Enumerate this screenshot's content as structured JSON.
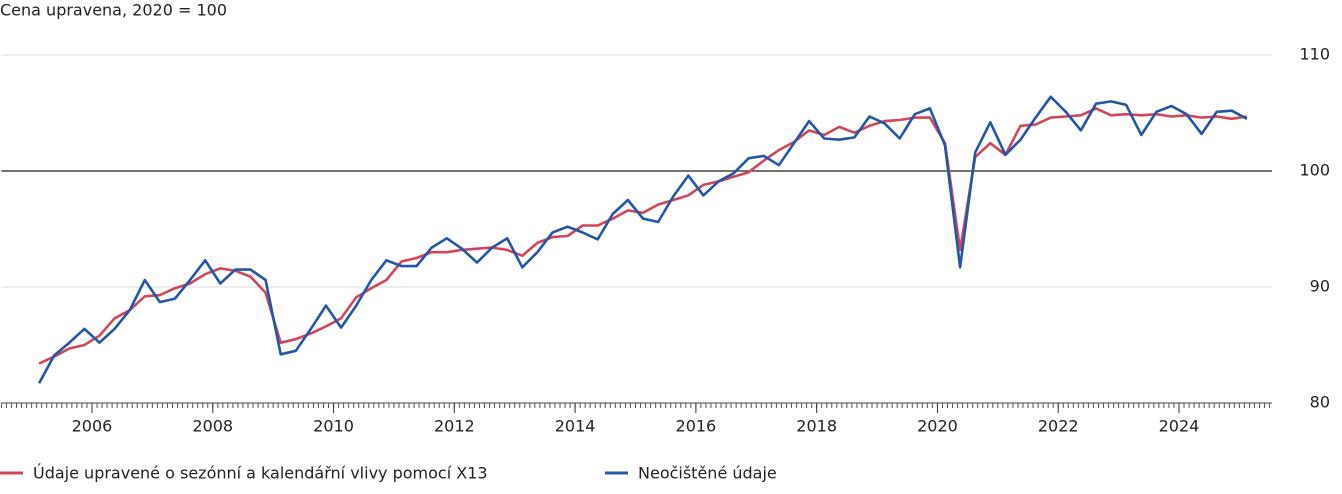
{
  "chart_data": {
    "type": "line",
    "title": "Cena upravena, 2020 = 100",
    "x": [
      2005.125,
      2005.375,
      2005.625,
      2005.875,
      2006.125,
      2006.375,
      2006.625,
      2006.875,
      2007.125,
      2007.375,
      2007.625,
      2007.875,
      2008.125,
      2008.375,
      2008.625,
      2008.875,
      2009.125,
      2009.375,
      2009.625,
      2009.875,
      2010.125,
      2010.375,
      2010.625,
      2010.875,
      2011.125,
      2011.375,
      2011.625,
      2011.875,
      2012.125,
      2012.375,
      2012.625,
      2012.875,
      2013.125,
      2013.375,
      2013.625,
      2013.875,
      2014.125,
      2014.375,
      2014.625,
      2014.875,
      2015.125,
      2015.375,
      2015.625,
      2015.875,
      2016.125,
      2016.375,
      2016.625,
      2016.875,
      2017.125,
      2017.375,
      2017.625,
      2017.875,
      2018.125,
      2018.375,
      2018.625,
      2018.875,
      2019.125,
      2019.375,
      2019.625,
      2019.875,
      2020.125,
      2020.375,
      2020.625,
      2020.875,
      2021.125,
      2021.375,
      2021.625,
      2021.875,
      2022.125,
      2022.375,
      2022.625,
      2022.875,
      2023.125,
      2023.375,
      2023.625,
      2023.875,
      2024.125,
      2024.375,
      2024.625,
      2024.875,
      2025.125
    ],
    "series": [
      {
        "name": "Údaje upravené o sezónní a kalendářní vlivy pomocí X13",
        "color": "#d1475a",
        "values": [
          83.4,
          84.0,
          84.7,
          85.0,
          85.8,
          87.3,
          88.0,
          89.2,
          89.3,
          89.9,
          90.3,
          91.1,
          91.6,
          91.4,
          90.9,
          89.5,
          85.2,
          85.5,
          86.0,
          86.6,
          87.3,
          89.1,
          89.9,
          90.6,
          92.2,
          92.5,
          93.0,
          93.0,
          93.2,
          93.3,
          93.4,
          93.2,
          92.7,
          93.8,
          94.3,
          94.4,
          95.3,
          95.3,
          95.9,
          96.6,
          96.4,
          97.1,
          97.5,
          97.9,
          98.8,
          99.1,
          99.5,
          99.9,
          100.9,
          101.8,
          102.5,
          103.5,
          103.1,
          103.8,
          103.3,
          103.9,
          104.3,
          104.4,
          104.6,
          104.6,
          102.4,
          93.2,
          101.2,
          102.4,
          101.4,
          103.9,
          104.0,
          104.6,
          104.7,
          104.8,
          105.4,
          104.8,
          104.9,
          104.8,
          104.9,
          104.7,
          104.8,
          104.6,
          104.7,
          104.5,
          104.7
        ]
      },
      {
        "name": "Neočištěné údaje",
        "color": "#2456a8",
        "values": [
          81.7,
          84.1,
          85.2,
          86.4,
          85.2,
          86.4,
          88.0,
          90.6,
          88.7,
          89.0,
          90.6,
          92.3,
          90.3,
          91.5,
          91.5,
          90.6,
          84.2,
          84.5,
          86.4,
          88.4,
          86.5,
          88.4,
          90.6,
          92.3,
          91.8,
          91.8,
          93.4,
          94.2,
          93.3,
          92.1,
          93.4,
          94.2,
          91.7,
          93.0,
          94.7,
          95.2,
          94.7,
          94.1,
          96.3,
          97.5,
          95.9,
          95.6,
          97.8,
          99.6,
          97.9,
          99.1,
          99.8,
          101.1,
          101.3,
          100.5,
          102.4,
          104.3,
          102.8,
          102.7,
          102.9,
          104.7,
          104.1,
          102.8,
          104.9,
          105.4,
          102.2,
          91.7,
          101.6,
          104.2,
          101.4,
          102.7,
          104.6,
          106.4,
          105.1,
          103.5,
          105.8,
          106.0,
          105.7,
          103.1,
          105.1,
          105.6,
          104.9,
          103.2,
          105.1,
          105.2,
          104.5
        ]
      }
    ],
    "xlim": [
      2004.5,
      2025.54
    ],
    "xticks": [
      2006,
      2008,
      2010,
      2012,
      2014,
      2016,
      2018,
      2020,
      2022,
      2024
    ],
    "ylim": [
      80,
      110
    ],
    "yticks": [
      80,
      90,
      100,
      110
    ],
    "reference_line": 100,
    "grid": true
  }
}
